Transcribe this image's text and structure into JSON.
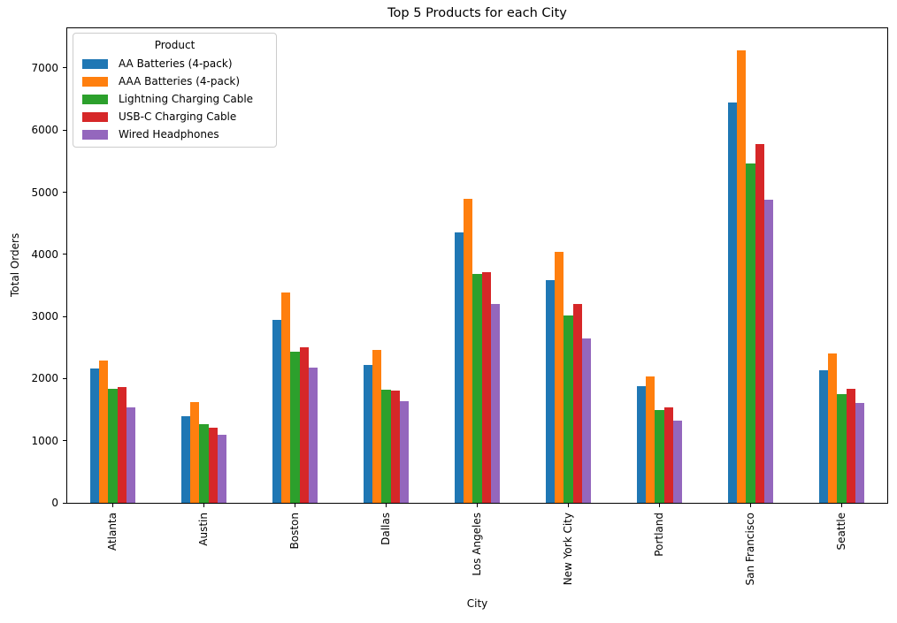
{
  "chart_data": {
    "type": "bar",
    "title": "Top 5 Products for each City",
    "xlabel": "City",
    "ylabel": "Total Orders",
    "legend_title": "Product",
    "legend_position": "upper-left",
    "grid": false,
    "ylim": [
      0,
      7640
    ],
    "yticks": [
      0,
      1000,
      2000,
      3000,
      4000,
      5000,
      6000,
      7000
    ],
    "categories": [
      "Atlanta",
      "Austin",
      "Boston",
      "Dallas",
      "Los Angeles",
      "New York City",
      "Portland",
      "San Francisco",
      "Seattle"
    ],
    "series": [
      {
        "name": "AA Batteries (4-pack)",
        "color": "#1f77b4",
        "values": [
          2160,
          1390,
          2950,
          2220,
          4350,
          3580,
          1880,
          6440,
          2130
        ]
      },
      {
        "name": "AAA Batteries (4-pack)",
        "color": "#ff7f0e",
        "values": [
          2290,
          1620,
          3390,
          2460,
          4890,
          4040,
          2040,
          7280,
          2410
        ]
      },
      {
        "name": "Lightning Charging Cable",
        "color": "#2ca02c",
        "values": [
          1840,
          1270,
          2440,
          1820,
          3690,
          3010,
          1490,
          5460,
          1750
        ]
      },
      {
        "name": "USB-C Charging Cable",
        "color": "#d62728",
        "values": [
          1870,
          1210,
          2510,
          1800,
          3720,
          3200,
          1540,
          5780,
          1830
        ]
      },
      {
        "name": "Wired Headphones",
        "color": "#9467bd",
        "values": [
          1540,
          1090,
          2180,
          1640,
          3200,
          2650,
          1330,
          4880,
          1610
        ]
      }
    ]
  }
}
